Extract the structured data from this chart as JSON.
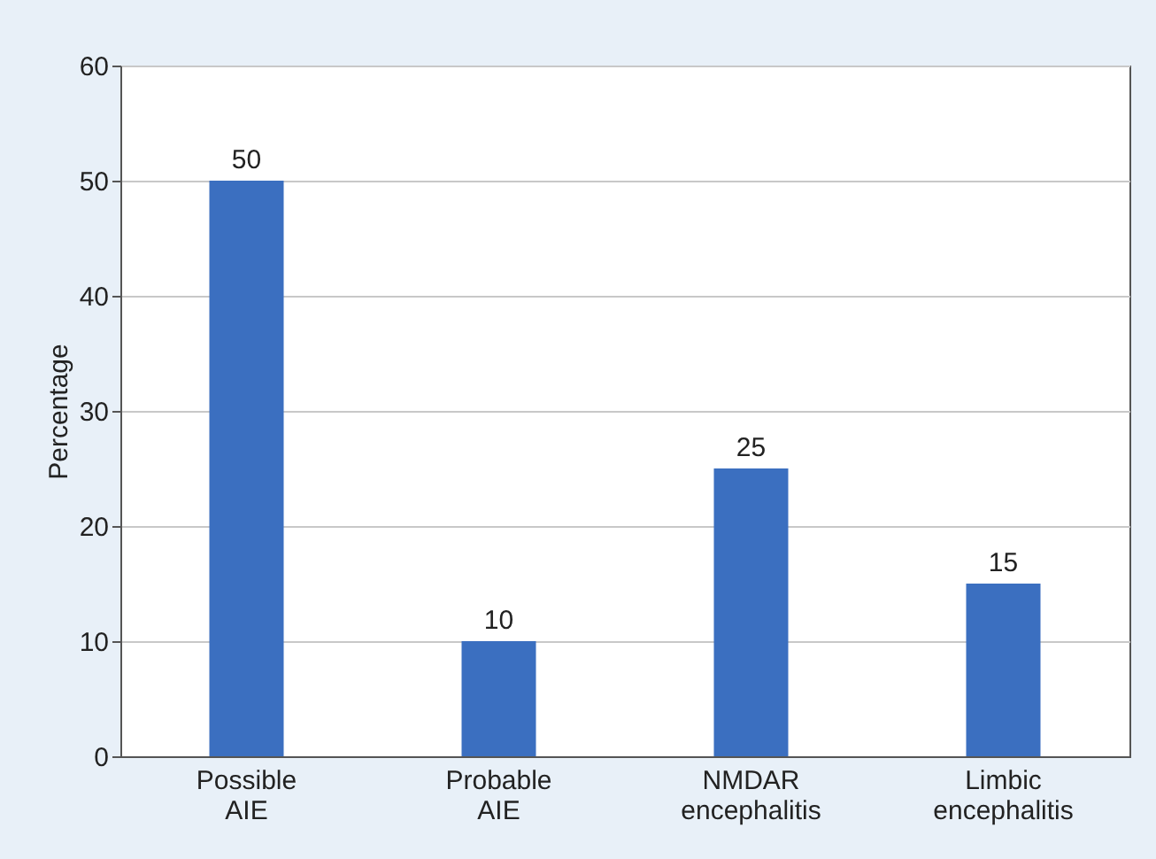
{
  "chart_data": {
    "type": "bar",
    "ylabel": "Percentage",
    "categories": [
      "Possible AIE",
      "Probable AIE",
      "NMDAR encephalitis",
      "Limbic encephalitis"
    ],
    "values": [
      50,
      10,
      25,
      15
    ],
    "color": "#3b6fc0",
    "ylim": [
      0,
      60
    ],
    "yticks": [
      0,
      10,
      20,
      30,
      40,
      50,
      60
    ],
    "grid": "y",
    "data_labels": true
  }
}
